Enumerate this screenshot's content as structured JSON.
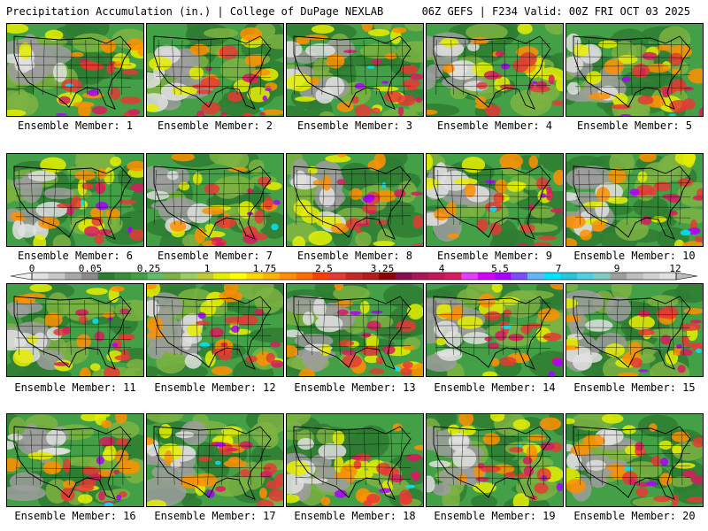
{
  "header": {
    "left": "Precipitation Accumulation (in.) | College of DuPage NEXLAB",
    "right": "06Z GEFS | F234 Valid: 00Z FRI OCT 03 2025"
  },
  "member_label_prefix": "Ensemble Member: ",
  "members": [
    1,
    2,
    3,
    4,
    5,
    6,
    7,
    8,
    9,
    10,
    11,
    12,
    13,
    14,
    15,
    16,
    17,
    18,
    19,
    20
  ],
  "colorbar": {
    "tick_labels": [
      "0",
      "0.05",
      "0.25",
      "1",
      "1.75",
      "2.5",
      "3.25",
      "4",
      "5.5",
      "7",
      "9",
      "12"
    ],
    "colors": [
      "#e0e0e0",
      "#c8c8c8",
      "#a8a8a8",
      "#8a8a8a",
      "#2e7d32",
      "#388e3c",
      "#43a047",
      "#66bb6a",
      "#7cb342",
      "#9ccc65",
      "#c0ca33",
      "#e6ee00",
      "#ffff00",
      "#ffd600",
      "#ffb300",
      "#ff8f00",
      "#ff6d00",
      "#ff3d00",
      "#e53935",
      "#c62828",
      "#b71c1c",
      "#8e0000",
      "#880e4f",
      "#ad1457",
      "#c2185b",
      "#d81b60",
      "#e040fb",
      "#d500f9",
      "#aa00ff",
      "#7c4dff",
      "#64b5f6",
      "#00e5ff",
      "#26c6da",
      "#4dd0e1",
      "#80cbc4",
      "#9e9e9e",
      "#bdbdbd",
      "#cfcfcf",
      "#e0e0e0"
    ]
  },
  "map_palette": {
    "dark_green": "#2e7d32",
    "green": "#43a047",
    "light_green": "#7cb342",
    "gray": "#9e9e9e",
    "light_gray": "#e0e0e0",
    "yellow": "#e6ee00",
    "orange": "#ff8f00",
    "red": "#e53935",
    "magenta": "#d81b60",
    "purple": "#aa00ff",
    "cyan": "#00e5ff"
  }
}
